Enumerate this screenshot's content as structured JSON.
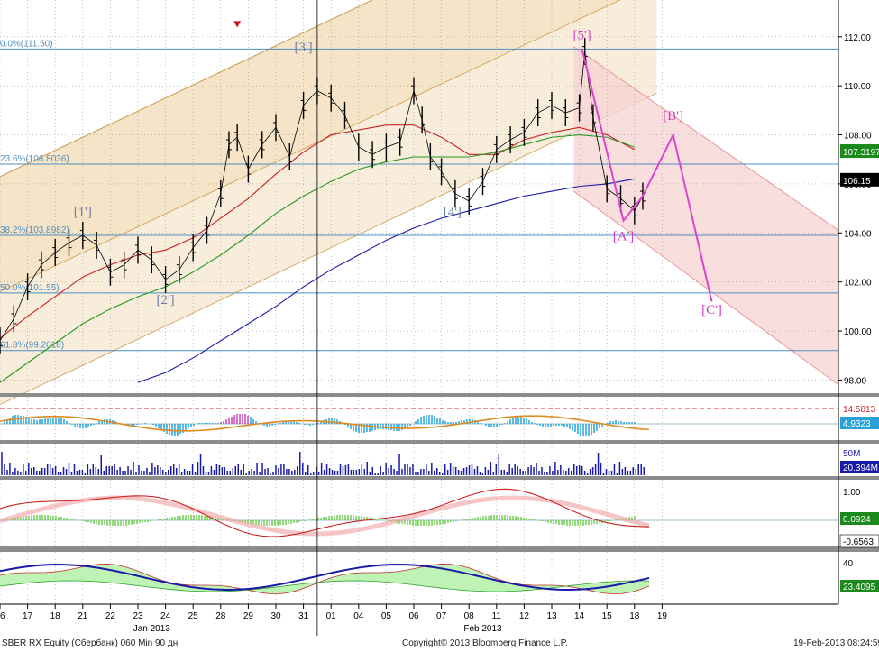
{
  "chart_data": {
    "type": "line",
    "instrument": "SBER RX Equity (Сбербанк) 060 Min 90 дн.",
    "footer_left": "SBER RX Equity (Сбербанк) 060 Min 90 дн.",
    "footer_center": "Copyright© 2013 Bloomberg Finance L.P.",
    "footer_right": "19-Feb-2013 08:24:59",
    "x_ticks": [
      "16",
      "17",
      "18",
      "21",
      "22",
      "23",
      "24",
      "25",
      "28",
      "29",
      "30",
      "31",
      "01",
      "04",
      "05",
      "06",
      "07",
      "08",
      "11",
      "12",
      "13",
      "14",
      "15",
      "18",
      "19"
    ],
    "x_month_labels": [
      {
        "label": "Jan 2013",
        "after_tick": "23"
      },
      {
        "label": "Feb 2013",
        "after_tick": "08"
      }
    ],
    "y_ticks": [
      "112.00",
      "110.00",
      "108.00",
      "106.00",
      "104.00",
      "102.00",
      "100.00",
      "98.00"
    ],
    "ylim": [
      97.5,
      113.5
    ],
    "fib_levels": [
      {
        "label": "0.0%(111.50)",
        "value": 111.5
      },
      {
        "label": "23.6%(106.8036)",
        "value": 106.8036
      },
      {
        "label": "38.2%(103.8982)",
        "value": 103.8982
      },
      {
        "label": "50.0%(101.55)",
        "value": 101.55
      },
      {
        "label": "61.8%(99.2018)",
        "value": 99.2018
      }
    ],
    "wave_labels": [
      {
        "label": "[1']",
        "index": 3,
        "value": 104.7
      },
      {
        "label": "[2']",
        "index": 6,
        "value": 101.1
      },
      {
        "label": "[3']",
        "index": 11,
        "value": 111.4
      },
      {
        "label": "[4']",
        "index": 16.4,
        "value": 104.7
      },
      {
        "label": "[5']",
        "index": 21.1,
        "value": 111.9
      },
      {
        "label": "[A']",
        "index": 22.6,
        "value": 103.7
      },
      {
        "label": "[B']",
        "index": 24.4,
        "value": 108.6
      },
      {
        "label": "[C']",
        "index": 25.8,
        "value": 100.7
      }
    ],
    "series": [
      {
        "name": "price",
        "color": "#000000",
        "x": [
          0,
          0.5,
          1,
          1.5,
          2,
          2.5,
          3,
          3.5,
          4,
          4.5,
          5,
          5.5,
          6,
          6.5,
          7,
          7.5,
          8,
          8.3,
          8.6,
          9,
          9.5,
          10,
          10.5,
          11,
          11.5,
          12,
          12.5,
          13,
          13.5,
          14,
          14.5,
          15,
          15.3,
          15.6,
          16,
          16.5,
          17,
          17.5,
          18,
          18.5,
          19,
          19.5,
          20,
          20.5,
          21,
          21.2,
          21.5,
          22,
          22.5,
          23,
          23.3
        ],
        "values": [
          99.6,
          100.5,
          101.8,
          102.7,
          103.2,
          103.6,
          103.9,
          103.5,
          102.4,
          102.7,
          103.3,
          102.9,
          102.1,
          102.5,
          103.4,
          104.1,
          105.6,
          107.6,
          107.9,
          106.6,
          107.6,
          108.3,
          107.1,
          109.2,
          109.8,
          109.5,
          108.8,
          107.5,
          107.2,
          107.5,
          107.7,
          109.8,
          108.6,
          107.1,
          106.5,
          105.6,
          105.3,
          106.1,
          107.4,
          107.8,
          108.1,
          108.9,
          109.2,
          108.9,
          109.1,
          111.4,
          108.7,
          105.8,
          105.4,
          104.9,
          105.5
        ]
      },
      {
        "name": "ma-red",
        "color": "#cc2222",
        "x": [
          0,
          1,
          2,
          3,
          4,
          5,
          6,
          7,
          8,
          9,
          10,
          11,
          12,
          13,
          14,
          15,
          16,
          17,
          18,
          19,
          20,
          21,
          22,
          23
        ],
        "values": [
          99.7,
          100.6,
          101.4,
          102.2,
          102.7,
          103.1,
          103.3,
          103.8,
          104.6,
          105.4,
          106.4,
          107.3,
          108.0,
          108.2,
          108.4,
          108.4,
          107.9,
          107.2,
          107.2,
          107.8,
          108.1,
          108.3,
          108.0,
          107.4
        ]
      },
      {
        "name": "ma-green",
        "color": "#229922",
        "x": [
          0,
          1,
          2,
          3,
          4,
          5,
          6,
          7,
          8,
          9,
          10,
          11,
          12,
          13,
          14,
          15,
          16,
          17,
          18,
          19,
          20,
          21,
          22,
          23
        ],
        "values": [
          97.9,
          98.7,
          99.5,
          100.3,
          100.9,
          101.4,
          101.8,
          102.4,
          103.1,
          103.9,
          104.8,
          105.5,
          106.1,
          106.6,
          106.9,
          107.1,
          107.1,
          107.1,
          107.3,
          107.6,
          107.9,
          108.0,
          107.9,
          107.5
        ]
      },
      {
        "name": "ma-blue",
        "color": "#1a1aa8",
        "x": [
          5,
          6,
          7,
          8,
          9,
          10,
          11,
          12,
          13,
          14,
          15,
          16,
          17,
          18,
          19,
          20,
          21,
          22,
          23
        ],
        "values": [
          97.9,
          98.3,
          98.9,
          99.6,
          100.3,
          101.0,
          101.8,
          102.5,
          103.1,
          103.7,
          104.2,
          104.6,
          104.9,
          105.2,
          105.5,
          105.7,
          105.9,
          106.0,
          106.2
        ]
      }
    ],
    "projection_path": {
      "color": "#dd44cc",
      "x": [
        21.1,
        22.6,
        23.3,
        24.4,
        25.8
      ],
      "values": [
        111.5,
        104.5,
        105.5,
        108.0,
        101.2
      ]
    },
    "price_badges": [
      {
        "label": "107.3197",
        "value": 107.3197,
        "color": "#1a8a1a"
      },
      {
        "label": "106.15",
        "value": 106.15,
        "color": "#000000"
      }
    ],
    "indicator_panels": [
      {
        "name": "momentum",
        "badges": [
          {
            "label": "14.5813",
            "color": "#cc2222"
          },
          {
            "label": "4.9323",
            "color": "#2aa0d6"
          }
        ]
      },
      {
        "name": "volume",
        "axis_label": "50M",
        "badges": [
          {
            "label": "20.394M",
            "color": "#1a1aa8"
          }
        ]
      },
      {
        "name": "macd",
        "axis_labels": [
          "1.00",
          "-0.6563"
        ],
        "badges": [
          {
            "label": "0.0924",
            "color": "#1a8a1a"
          },
          {
            "label": "-0.6563",
            "color": "#ffffff"
          }
        ]
      },
      {
        "name": "rsi",
        "axis_labels": [
          "40",
          "20"
        ],
        "badges": [
          {
            "label": "23.4095",
            "color": "#1a8a1a"
          }
        ]
      }
    ]
  }
}
